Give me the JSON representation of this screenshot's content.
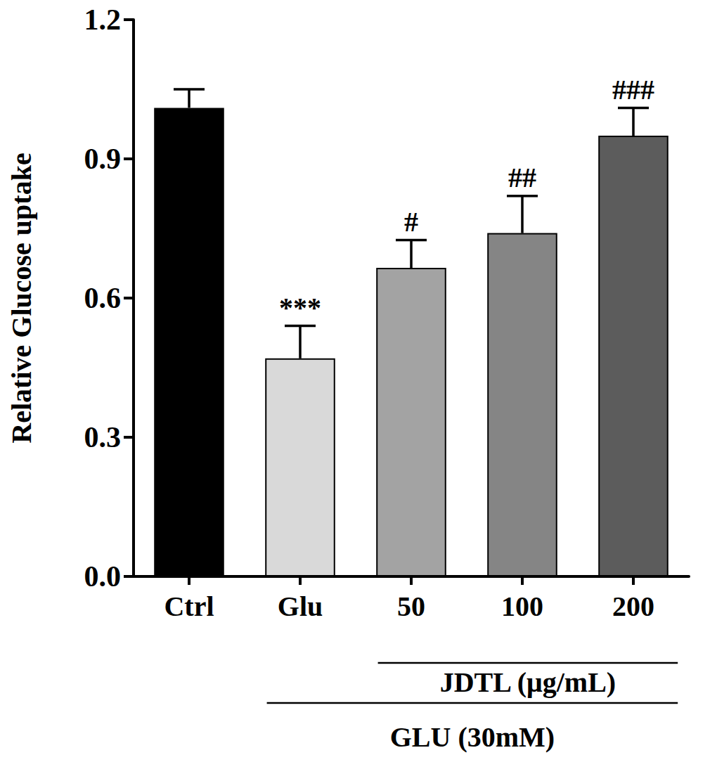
{
  "chart_data": {
    "type": "bar",
    "ylabel": "Relative Glucose uptake",
    "categories": [
      "Ctrl",
      "Glu",
      "50",
      "100",
      "200"
    ],
    "values": [
      1.01,
      0.47,
      0.665,
      0.74,
      0.95
    ],
    "errors": [
      0.04,
      0.07,
      0.06,
      0.08,
      0.06
    ],
    "colors": [
      "#000000",
      "#d9d9d9",
      "#a3a3a3",
      "#858585",
      "#5c5c5c"
    ],
    "annotations": [
      null,
      "***",
      "#",
      "##",
      "###"
    ],
    "groups": [
      {
        "label": "JDTL (μg/mL)",
        "categories": [
          "50",
          "100",
          "200"
        ]
      },
      {
        "label": "GLU (30mM)",
        "categories": [
          "Glu",
          "50",
          "100",
          "200"
        ]
      }
    ],
    "ylim": [
      0,
      1.2
    ],
    "yticks": [
      {
        "value": 0,
        "label": "0.0"
      },
      0.3,
      0.6,
      0.9,
      1.2
    ],
    "grid": false
  }
}
